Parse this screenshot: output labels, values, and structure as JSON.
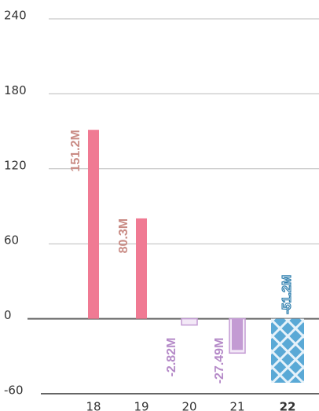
{
  "chart_data": {
    "type": "bar",
    "categories": [
      "18",
      "19",
      "20",
      "21",
      "22"
    ],
    "values": [
      151.2,
      80.3,
      -2.82,
      -27.49,
      -51.2
    ],
    "value_labels": [
      "151.2M",
      "80.3M",
      "-2.82M",
      "-27.49M",
      "-51.2M"
    ],
    "colors": [
      "#f07a93",
      "#f07a93",
      "#c39bd3",
      "#c39bd3",
      "#5aa9d6"
    ],
    "label_colors": [
      "#c98b84",
      "#c98b84",
      "#b58ac8",
      "#b58ac8",
      "#2f7fae"
    ],
    "ylim": [
      -60,
      240
    ],
    "yticks": [
      -60,
      0,
      60,
      120,
      180,
      240
    ],
    "grid": true
  }
}
